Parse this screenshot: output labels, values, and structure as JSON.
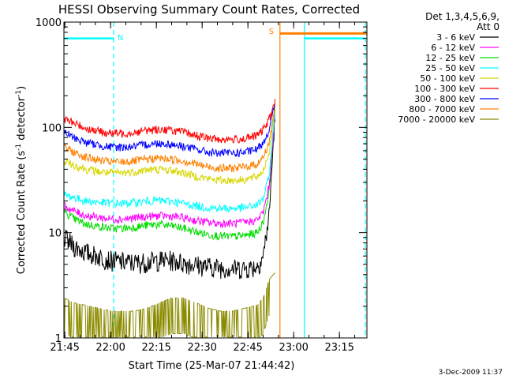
{
  "chart_data": {
    "type": "line",
    "title": "HESSI Observing Summary Count Rates, Corrected",
    "xlabel": "Start Time (25-Mar-07 21:44:42)",
    "ylabel": "Corrected Count Rate (s⁻¹ detector⁻¹)",
    "ylabel_parts": {
      "main": "Corrected Count Rate (s",
      "exp1": "-1",
      "mid": " detector",
      "exp2": "-1",
      "end": ")"
    },
    "y_scale": "log",
    "ylim": [
      1,
      1000
    ],
    "xlim": [
      "21:44:42",
      "23:24:00"
    ],
    "x_ticks": [
      "21:45",
      "22:00",
      "22:15",
      "22:30",
      "22:45",
      "23:00",
      "23:15"
    ],
    "y_ticks": [
      "1",
      "10",
      "100",
      "1000"
    ],
    "legend_title_lines": [
      "Det 1,3,4,5,6,9,",
      "Att 0"
    ],
    "legend_position": "top-right, outside plot",
    "footer": "3-Dec-2009 11:37",
    "x_times": [
      "21:44:42",
      "21:48",
      "21:52",
      "21:56",
      "22:00",
      "22:04",
      "22:08",
      "22:12",
      "22:16",
      "22:20",
      "22:24",
      "22:28",
      "22:32",
      "22:36",
      "22:40",
      "22:44",
      "22:48",
      "22:50",
      "22:52",
      "22:54"
    ],
    "series": [
      {
        "name": "3 - 6 keV",
        "color": "#000000",
        "values": [
          9.0,
          7.5,
          6.5,
          6.0,
          5.5,
          5.3,
          5.2,
          5.3,
          5.5,
          5.5,
          5.2,
          5.0,
          4.8,
          4.7,
          4.6,
          4.6,
          4.8,
          6.0,
          15.0,
          160
        ]
      },
      {
        "name": "6 - 12 keV",
        "color": "#ff00ff",
        "values": [
          18.0,
          16.0,
          14.5,
          14.0,
          13.5,
          13.5,
          13.8,
          14.2,
          14.5,
          14.3,
          13.8,
          13.0,
          12.5,
          12.2,
          12.3,
          12.5,
          13.2,
          15.5,
          28.0,
          165
        ]
      },
      {
        "name": "12 - 25 keV",
        "color": "#00dd00",
        "values": [
          16.0,
          13.5,
          12.0,
          11.5,
          11.0,
          11.0,
          11.3,
          11.8,
          12.0,
          11.6,
          11.0,
          10.2,
          9.6,
          9.3,
          9.2,
          9.4,
          10.0,
          12.5,
          25.0,
          165
        ]
      },
      {
        "name": "25 - 50 keV",
        "color": "#00ffff",
        "values": [
          23.0,
          21.5,
          20.0,
          19.5,
          19.0,
          19.0,
          19.3,
          20.0,
          20.2,
          19.8,
          19.0,
          18.0,
          17.3,
          17.0,
          17.0,
          17.3,
          18.3,
          21.0,
          35.0,
          170
        ]
      },
      {
        "name": "50 - 100 keV",
        "color": "#d7d700",
        "values": [
          48.0,
          44.0,
          40.0,
          38.0,
          37.0,
          37.0,
          38.0,
          39.5,
          40.0,
          39.0,
          37.0,
          34.5,
          32.5,
          31.5,
          31.5,
          32.0,
          34.0,
          39.0,
          58.0,
          172
        ]
      },
      {
        "name": "100 - 300 keV",
        "color": "#ff0000",
        "values": [
          120,
          110,
          98,
          92,
          88,
          88,
          90,
          94,
          96,
          94,
          90,
          84,
          79,
          77,
          77,
          78,
          84,
          95,
          120,
          180
        ]
      },
      {
        "name": "300 - 800 keV",
        "color": "#0000ff",
        "values": [
          90,
          80,
          72,
          68,
          65,
          65,
          66,
          69,
          71,
          69,
          66,
          62,
          58,
          57,
          57,
          58,
          62,
          72,
          95,
          178
        ]
      },
      {
        "name": "800 - 7000 keV",
        "color": "#ff8000",
        "values": [
          65,
          58,
          52,
          49,
          47,
          47,
          48,
          50,
          51,
          50,
          48,
          45,
          42,
          41,
          41,
          42,
          45,
          52,
          72,
          175
        ]
      },
      {
        "name": "7000 - 20000 keV",
        "color": "#8b8b00",
        "values": [
          2.0,
          1.8,
          1.7,
          1.6,
          1.5,
          1.5,
          1.5,
          1.6,
          1.8,
          2.0,
          2.0,
          1.8,
          1.6,
          1.5,
          1.5,
          1.6,
          1.7,
          2.0,
          3.0,
          3.5
        ]
      }
    ],
    "annotations": [
      {
        "label": "N",
        "color": "#00ffff",
        "bar_from": "21:44:42",
        "bar_to": "22:01:00",
        "line_at": "22:01:00"
      },
      {
        "label": "S",
        "color": "#ff8000",
        "bar_from": "22:55:30",
        "bar_to": "23:24:00",
        "line_at": "22:55:30"
      }
    ],
    "cyan_vertical_lines_at": [
      "21:44:42",
      "22:01:00",
      "23:03:30",
      "23:23:30"
    ],
    "cyan_top_bars": [
      [
        "21:44:42",
        "22:01:00"
      ],
      [
        "23:03:30",
        "23:23:30"
      ]
    ]
  }
}
